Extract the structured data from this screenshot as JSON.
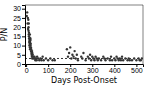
{
  "chart_data": {
    "type": "scatter",
    "xlabel": "Days Post-Onset",
    "ylabel": "P/N",
    "xlim": [
      -5,
      530
    ],
    "ylim": [
      0,
      32
    ],
    "xticks": [
      0,
      100,
      200,
      300,
      400,
      500
    ],
    "yticks": [
      0,
      5,
      10,
      15,
      20,
      25,
      30
    ],
    "cutoff_y": 3.0,
    "color": "#333333",
    "grid": false,
    "x": [
      3,
      5,
      7,
      8,
      9,
      10,
      11,
      11,
      12,
      12,
      13,
      13,
      14,
      14,
      15,
      15,
      16,
      17,
      17,
      18,
      18,
      19,
      20,
      20,
      21,
      22,
      22,
      23,
      24,
      25,
      26,
      27,
      28,
      28,
      30,
      32,
      35,
      38,
      40,
      42,
      45,
      48,
      50,
      55,
      60,
      65,
      70,
      75,
      80,
      90,
      100,
      110,
      120,
      130,
      185,
      190,
      195,
      200,
      205,
      210,
      215,
      220,
      225,
      230,
      235,
      250,
      255,
      260,
      270,
      280,
      285,
      290,
      295,
      300,
      305,
      310,
      315,
      320,
      325,
      330,
      340,
      350,
      355,
      360,
      370,
      380,
      385,
      390,
      400,
      405,
      410,
      415,
      420,
      425,
      430,
      435,
      440,
      450,
      460,
      465,
      470,
      480,
      490,
      500,
      510,
      515,
      520,
      525
    ],
    "values": [
      26,
      28,
      22,
      25,
      19,
      24,
      18,
      20,
      16,
      22,
      17,
      15,
      14,
      12,
      13,
      10,
      11,
      16,
      9,
      12,
      8,
      14,
      10,
      13,
      11,
      7,
      9,
      8,
      6,
      5,
      4,
      7,
      6,
      3,
      5,
      4,
      3,
      4,
      3,
      2,
      3,
      2,
      4,
      3,
      2,
      3,
      2,
      4,
      2,
      3,
      2,
      3,
      2,
      2,
      8,
      4,
      6,
      9,
      3,
      5,
      4,
      7,
      3,
      5,
      2,
      4,
      3,
      6,
      2,
      4,
      3,
      5,
      2,
      4,
      3,
      2,
      4,
      3,
      2,
      3,
      2,
      4,
      3,
      2,
      3,
      2,
      4,
      2,
      3,
      2,
      4,
      3,
      2,
      3,
      2,
      4,
      2,
      3,
      2,
      3,
      2,
      2,
      3,
      2,
      3,
      2,
      2,
      3
    ]
  }
}
